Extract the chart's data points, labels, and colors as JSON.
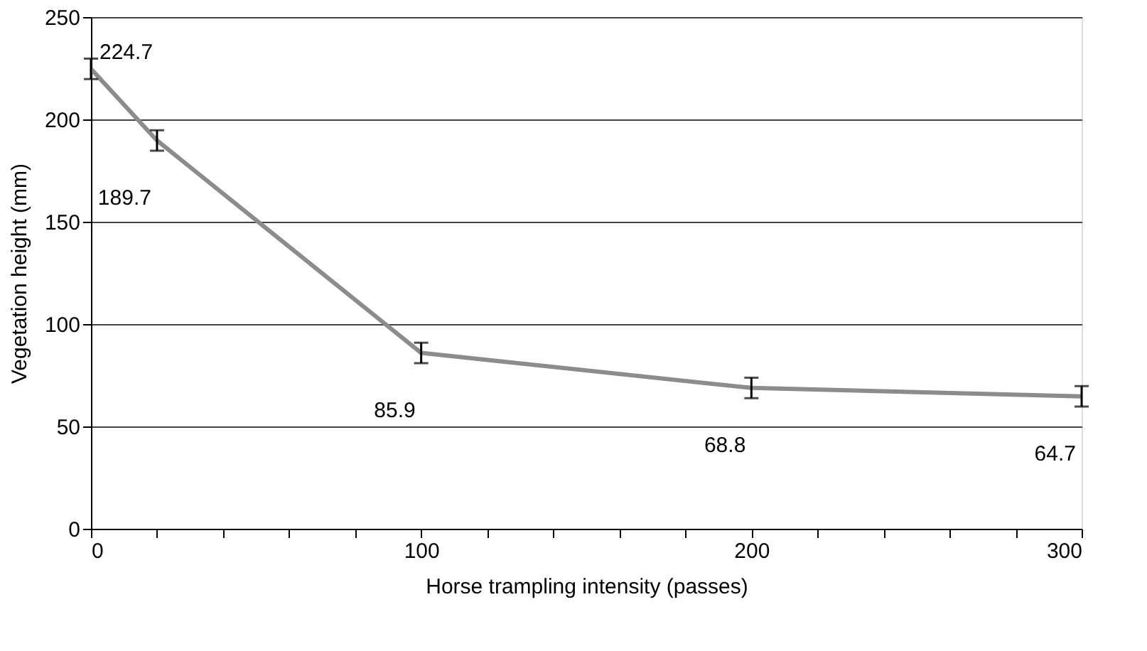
{
  "chart_data": {
    "type": "line",
    "xlabel": "Horse trampling intensity (passes)",
    "ylabel": "Vegetation height (mm)",
    "x": [
      0,
      20,
      100,
      200,
      300
    ],
    "series": [
      {
        "color": "#8c8c8c",
        "values": [
          224.7,
          189.7,
          85.9,
          68.8,
          64.7
        ],
        "errors": [
          5,
          5,
          5,
          5,
          5
        ]
      }
    ],
    "xlim": [
      0,
      300
    ],
    "ylim": [
      0,
      250
    ],
    "xticks": [
      0,
      {
        "value": 20,
        "label": null
      },
      {
        "value": 40,
        "label": null
      },
      {
        "value": 60,
        "label": null
      },
      {
        "value": 80,
        "label": null
      },
      100,
      {
        "value": 120,
        "label": null
      },
      {
        "value": 140,
        "label": null
      },
      {
        "value": 160,
        "label": null
      },
      {
        "value": 180,
        "label": null
      },
      200,
      {
        "value": 220,
        "label": null
      },
      {
        "value": 240,
        "label": null
      },
      {
        "value": 260,
        "label": null
      },
      {
        "value": 280,
        "label": null
      },
      300
    ],
    "yticks": [
      0,
      50,
      100,
      150,
      200,
      250
    ],
    "grid": "y",
    "marker": "none",
    "line_style": "solid",
    "data_labels": true
  }
}
